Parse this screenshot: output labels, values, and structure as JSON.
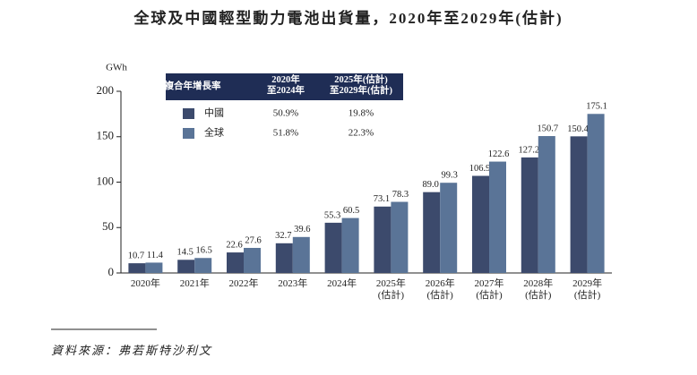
{
  "chart_data": {
    "type": "bar",
    "title": "全球及中國輕型動力電池出貨量，2020年至2029年(估計)",
    "y_label": "GWh",
    "source": "資料來源：弗若斯特沙利文",
    "categories": [
      "2020年",
      "2021年",
      "2022年",
      "2023年",
      "2024年",
      "2025年\n(估計)",
      "2026年\n(估計)",
      "2027年\n(估計)",
      "2028年\n(估計)",
      "2029年\n(估計)"
    ],
    "series": [
      {
        "name": "中國",
        "color": "#3c4a6c",
        "values": [
          10.7,
          14.5,
          22.6,
          32.7,
          55.3,
          73.1,
          89.0,
          106.9,
          127.2,
          150.4
        ],
        "value_labels": [
          "10.7",
          "14.5",
          "22.6",
          "32.7",
          "55.3",
          "73.1",
          "89.0",
          "106.9",
          "127.2",
          "150.4"
        ]
      },
      {
        "name": "全球",
        "color": "#5a7497",
        "values": [
          11.4,
          16.5,
          27.6,
          39.6,
          60.5,
          78.3,
          99.3,
          122.6,
          150.7,
          175.1
        ],
        "value_labels": [
          "11.4",
          "16.5",
          "27.6",
          "39.6",
          "60.5",
          "78.3",
          "99.3",
          "122.6",
          "150.7",
          "175.1"
        ]
      }
    ],
    "ylim": [
      0,
      200
    ],
    "yticks": [
      0,
      50,
      100,
      150,
      200
    ],
    "cagr_table": {
      "headers": [
        "複合年增長率",
        "2020年\n至2024年",
        "2025年(估計)\n至2029年(估計)"
      ],
      "rows": [
        [
          "50.9%",
          "19.8%"
        ],
        [
          "51.8%",
          "22.3%"
        ]
      ]
    }
  }
}
